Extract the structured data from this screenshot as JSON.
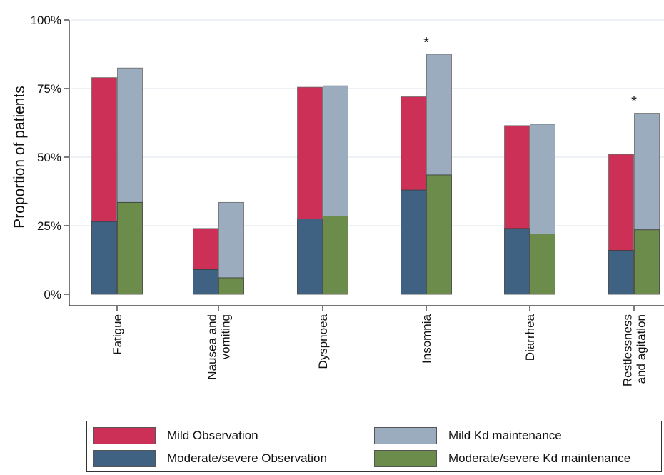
{
  "chart_data": {
    "type": "bar",
    "ylabel": "Proportion of patients",
    "xlabel": "",
    "ylim": [
      0,
      1
    ],
    "yticks": [
      {
        "value": 0,
        "label": "0%"
      },
      {
        "value": 0.25,
        "label": "25%"
      },
      {
        "value": 0.5,
        "label": "50%"
      },
      {
        "value": 0.75,
        "label": "75%"
      },
      {
        "value": 1.0,
        "label": "100%"
      }
    ],
    "grid": true,
    "legend_position": "bottom",
    "categories": [
      {
        "lines": [
          "Fatigue"
        ],
        "annotation": ""
      },
      {
        "lines": [
          "Nausea and",
          "vomiting"
        ],
        "annotation": ""
      },
      {
        "lines": [
          "Dyspnoea"
        ],
        "annotation": ""
      },
      {
        "lines": [
          "Insomnia"
        ],
        "annotation": "*"
      },
      {
        "lines": [
          "Diarrhea"
        ],
        "annotation": ""
      },
      {
        "lines": [
          "Restlessness",
          "and agitation"
        ],
        "annotation": "*"
      }
    ],
    "stacks": [
      {
        "stack": "Observation",
        "bottom_series": 0,
        "top_series": 1
      },
      {
        "stack": "Kd maintenance",
        "bottom_series": 2,
        "top_series": 3
      }
    ],
    "series": [
      {
        "name": "Moderate/severe Observation",
        "color": "#3f6283",
        "values": [
          0.265,
          0.09,
          0.275,
          0.38,
          0.24,
          0.16
        ]
      },
      {
        "name": "Mild Observation",
        "color": "#cc3056",
        "values": [
          0.525,
          0.15,
          0.48,
          0.34,
          0.375,
          0.35
        ]
      },
      {
        "name": "Moderate/severe Kd maintenance",
        "color": "#6c8c4b",
        "values": [
          0.335,
          0.06,
          0.285,
          0.435,
          0.22,
          0.235
        ]
      },
      {
        "name": "Mild Kd maintenance",
        "color": "#9aacbd",
        "values": [
          0.49,
          0.275,
          0.475,
          0.44,
          0.4,
          0.425
        ]
      }
    ]
  },
  "legend": {
    "items": [
      {
        "label": "Mild Observation",
        "color": "#cc3056"
      },
      {
        "label": "Mild Kd maintenance",
        "color": "#9aacbd"
      },
      {
        "label": "Moderate/severe Observation",
        "color": "#3f6283"
      },
      {
        "label": "Moderate/severe Kd maintenance",
        "color": "#6c8c4b"
      }
    ]
  }
}
